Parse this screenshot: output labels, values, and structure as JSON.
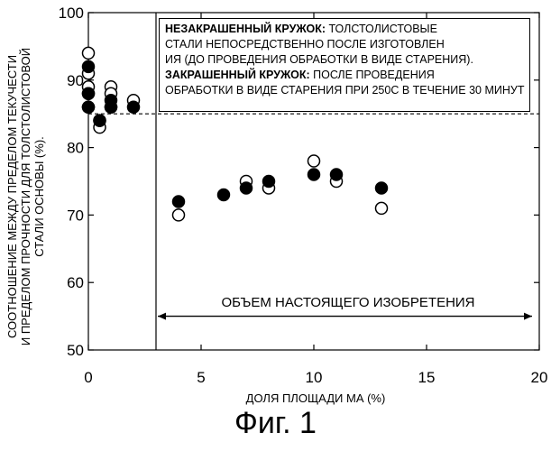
{
  "chart_data": {
    "type": "scatter",
    "ylabel_lines": [
      "СООТНОШЕНИЕ МЕЖДУ ПРЕДЕЛОМ ТЕКУЧЕСТИ",
      "И ПРЕДЕЛОМ ПРОЧНОСТИ ДЛЯ ТОЛСТОЛИСТОВОЙ",
      "СТАЛИ ОСНОВЫ (%)."
    ],
    "xlabel": "ДОЛЯ ПЛОЩАДИ МА (%)",
    "xlim": [
      0,
      20
    ],
    "ylim": [
      50,
      100
    ],
    "xticks": [
      "0",
      "5",
      "10",
      "15",
      "20"
    ],
    "yticks": [
      "50",
      "60",
      "70",
      "80",
      "90",
      "100"
    ],
    "reference_line_y": 85,
    "region_divider_x": 3,
    "annotation": "ОБЪЕМ НАСТОЯЩЕГО ИЗОБРЕТЕНИЯ",
    "annotation_arrow_x": [
      3,
      20
    ],
    "annotation_arrow_y": 55,
    "legend": {
      "open_label": "НЕЗАКРАШЕННЫЙ КРУЖОК:",
      "open_text_lines": [
        " ТОЛСТОЛИСТОВЫЕ",
        " СТАЛИ НЕПОСРЕДСТВЕННО ПОСЛЕ ИЗГОТОВЛЕН",
        "ИЯ (ДО ПРОВЕДЕНИЯ ОБРАБОТКИ В ВИДЕ СТАРЕНИЯ)."
      ],
      "filled_label": "ЗАКРАШЕННЫЙ КРУЖОК:",
      "filled_text_lines": [
        " ПОСЛЕ ПРОВЕДЕНИЯ",
        "ОБРАБОТКИ В ВИДЕ СТАРЕНИЯ ПРИ 250С В ТЕЧЕНИЕ 30 МИНУТ"
      ]
    },
    "series": [
      {
        "name": "open",
        "marker": "open-circle",
        "points": [
          [
            0,
            94
          ],
          [
            0,
            91
          ],
          [
            0,
            89
          ],
          [
            0,
            88
          ],
          [
            0,
            86
          ],
          [
            0.5,
            83
          ],
          [
            0.5,
            84
          ],
          [
            1,
            89
          ],
          [
            1,
            88
          ],
          [
            1,
            86
          ],
          [
            2,
            87
          ],
          [
            4,
            70
          ],
          [
            7,
            75
          ],
          [
            8,
            74
          ],
          [
            10,
            78
          ],
          [
            11,
            75
          ],
          [
            13,
            71
          ]
        ]
      },
      {
        "name": "filled",
        "marker": "filled-circle",
        "points": [
          [
            0,
            92
          ],
          [
            0,
            88
          ],
          [
            0,
            86
          ],
          [
            0.5,
            84
          ],
          [
            1,
            87
          ],
          [
            1,
            86
          ],
          [
            2,
            86
          ],
          [
            4,
            72
          ],
          [
            6,
            73
          ],
          [
            7,
            74
          ],
          [
            8,
            75
          ],
          [
            10,
            76
          ],
          [
            11,
            76
          ],
          [
            13,
            74
          ]
        ]
      }
    ]
  },
  "figure_caption": "Фиг. 1"
}
